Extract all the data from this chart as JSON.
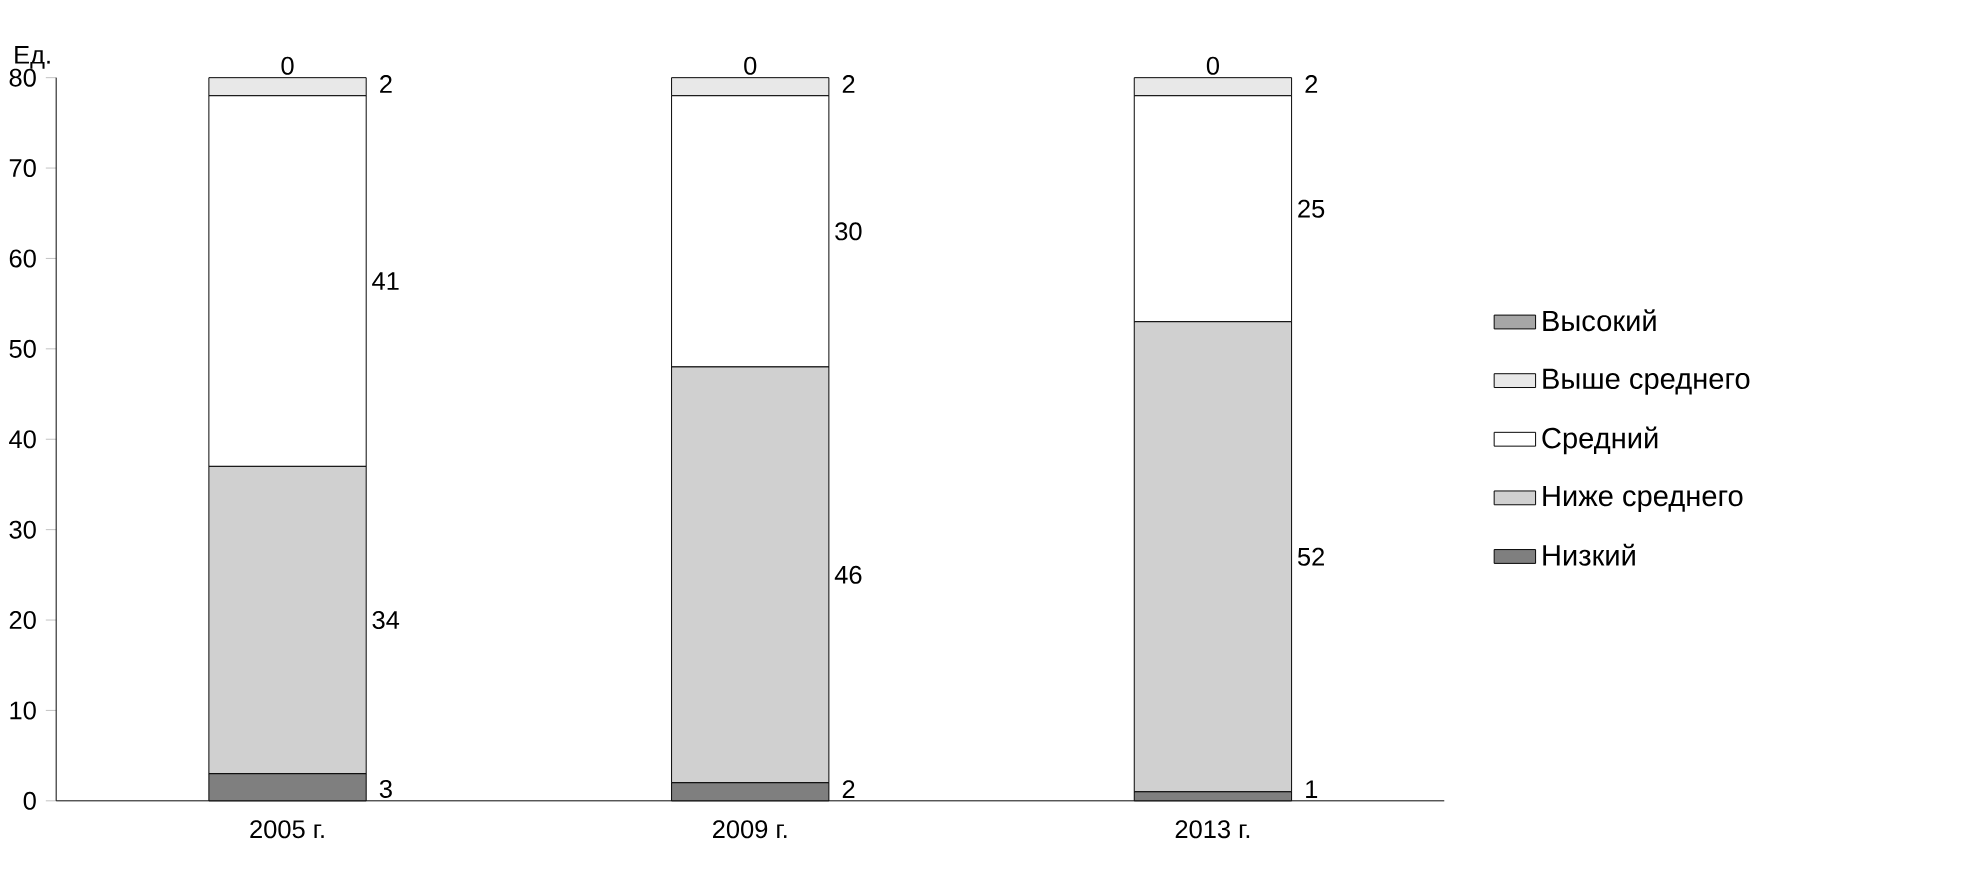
{
  "chart_data": {
    "type": "bar",
    "stacked": true,
    "ylabel": "Ед.",
    "categories": [
      "2005 г.",
      "2009 г.",
      "2013 г."
    ],
    "series": [
      {
        "name": "Низкий",
        "color": "#7f7f7f",
        "values": [
          3,
          2,
          1
        ],
        "value_labels": [
          "3",
          "2",
          "1"
        ]
      },
      {
        "name": "Ниже среднего",
        "color": "#d0d0d0",
        "values": [
          34,
          46,
          52
        ],
        "value_labels": [
          "34",
          "46",
          "52"
        ]
      },
      {
        "name": "Средний",
        "color": "#ffffff",
        "values": [
          41,
          30,
          25
        ],
        "value_labels": [
          "41",
          "30",
          "25"
        ]
      },
      {
        "name": "Выше среднего",
        "color": "#e8e8e8",
        "values": [
          2,
          2,
          2
        ],
        "value_labels": [
          "2",
          "2",
          "2"
        ]
      },
      {
        "name": "Высокий",
        "color": "#a6a6a6",
        "values": [
          0,
          0,
          0
        ],
        "value_labels": [
          "0",
          "0",
          "0"
        ]
      }
    ],
    "ylim": [
      0,
      80
    ],
    "yticks": [
      0,
      10,
      20,
      30,
      40,
      50,
      60,
      70,
      80
    ],
    "grid": false,
    "legend": "right"
  }
}
